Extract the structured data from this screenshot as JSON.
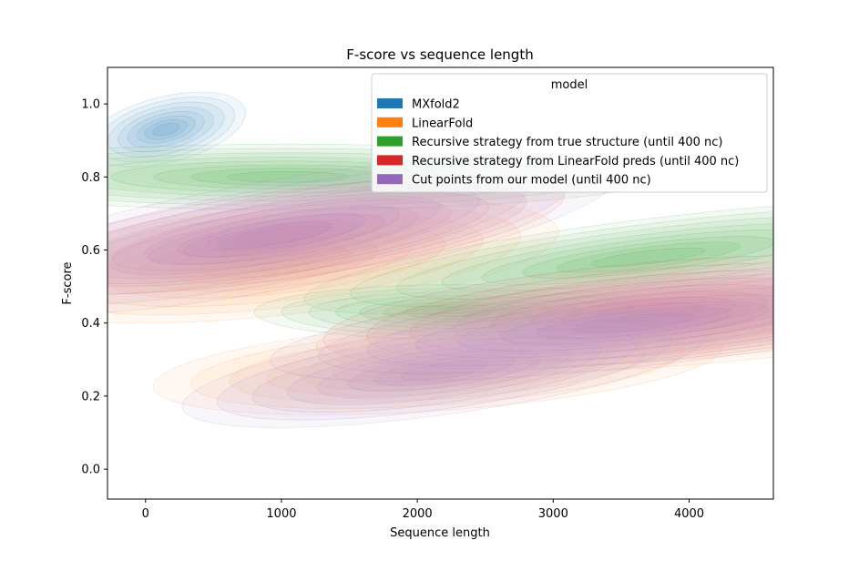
{
  "chart_data": {
    "type": "kde-density",
    "title": "F-score vs sequence length",
    "xlabel": "Sequence length",
    "ylabel": "F-score",
    "xlim": [
      -280,
      4620
    ],
    "ylim": [
      -0.082,
      1.1
    ],
    "x_ticks": [
      0,
      1000,
      2000,
      3000,
      4000
    ],
    "y_ticks": [
      0.0,
      0.2,
      0.4,
      0.6,
      0.8,
      1.0
    ],
    "x_tick_labels": [
      "0",
      "1000",
      "2000",
      "3000",
      "4000"
    ],
    "y_tick_labels": [
      "0.0",
      "0.2",
      "0.4",
      "0.6",
      "0.8",
      "1.0"
    ],
    "grid": false,
    "legend": {
      "title": "model",
      "placement": "top-right"
    },
    "series": [
      {
        "name": "MXfold2",
        "color": "#1f77b4",
        "clusters": [
          {
            "x": 150,
            "y": 0.93,
            "sx": 200,
            "sy": 0.03,
            "angle_deg": -14
          }
        ]
      },
      {
        "name": "LinearFold",
        "color": "#ff7f0e",
        "clusters": [
          {
            "x": 950,
            "y": 0.57,
            "sx": 700,
            "sy": 0.05,
            "angle_deg": -6
          },
          {
            "x": 2150,
            "y": 0.28,
            "sx": 700,
            "sy": 0.04,
            "angle_deg": -4
          },
          {
            "x": 3800,
            "y": 0.4,
            "sx": 850,
            "sy": 0.04,
            "angle_deg": -4
          }
        ]
      },
      {
        "name": "Recursive strategy from true structure (until 400 nc)",
        "color": "#2ca02c",
        "clusters": [
          {
            "x": 1050,
            "y": 0.8,
            "sx": 900,
            "sy": 0.03,
            "angle_deg": 0
          },
          {
            "x": 2300,
            "y": 0.43,
            "sx": 500,
            "sy": 0.025,
            "angle_deg": 0
          },
          {
            "x": 3700,
            "y": 0.58,
            "sx": 850,
            "sy": 0.035,
            "angle_deg": -7
          }
        ]
      },
      {
        "name": "Recursive strategy from LinearFold preds (until 400 nc)",
        "color": "#d62728",
        "clusters": [
          {
            "x": 1000,
            "y": 0.64,
            "sx": 700,
            "sy": 0.04,
            "angle_deg": -8
          },
          {
            "x": 3700,
            "y": 0.43,
            "sx": 800,
            "sy": 0.045,
            "angle_deg": -5
          }
        ]
      },
      {
        "name": "Cut points from our model (until 400 nc)",
        "color": "#9467bd",
        "clusters": [
          {
            "x": 950,
            "y": 0.64,
            "sx": 850,
            "sy": 0.05,
            "angle_deg": -10
          },
          {
            "x": 2200,
            "y": 0.27,
            "sx": 650,
            "sy": 0.04,
            "angle_deg": -8
          },
          {
            "x": 3600,
            "y": 0.4,
            "sx": 900,
            "sy": 0.04,
            "angle_deg": -6
          }
        ]
      }
    ]
  }
}
